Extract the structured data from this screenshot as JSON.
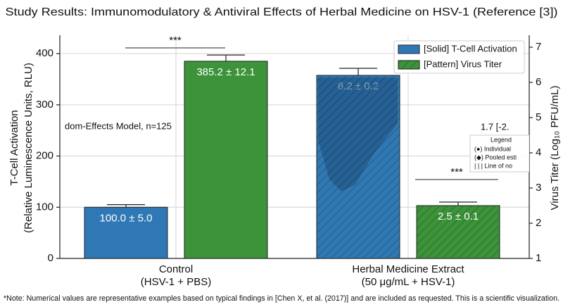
{
  "chart_data": {
    "type": "grouped-bar",
    "title": "Study Results: Immunomodulatory & Antiviral Effects of Herbal Medicine on HSV-1 (Reference [3])",
    "categories": [
      "Control",
      "Herbal Medicine Extract"
    ],
    "category_subtitles": [
      "(HSV-1 + PBS)",
      "(50 μg/mL + HSV-1)"
    ],
    "ylabel": [
      "T-Cell Activation",
      "(Relative Luminescence Units, RLU)"
    ],
    "y2label": "Virus Titer (Log₁₀ PFU/mL)",
    "ylim": [
      0,
      436
    ],
    "yticks": [
      0,
      100,
      200,
      300,
      400
    ],
    "y2lim": [
      1,
      7.34
    ],
    "y2ticks": [
      1,
      2,
      3,
      4,
      5,
      6,
      7
    ],
    "grid": true,
    "groups": [
      {
        "bars": [
          {
            "axis": "y",
            "value": 100,
            "error": 5,
            "value_label": "100.0 ± 5.0",
            "color": "#2f78b5",
            "hatch": false
          },
          {
            "axis": "y",
            "value": 385.2,
            "error": 12.1,
            "value_label": "385.2 ± 12.1",
            "color": "#3c9339",
            "hatch": false
          }
        ]
      },
      {
        "bars": [
          {
            "axis": "y2",
            "value": 6.2,
            "error": 0.2,
            "value_label": "6.2 ± 0.2",
            "color": "#2f78b5",
            "hatch": true
          },
          {
            "axis": "y2",
            "value": 2.5,
            "error": 0.1,
            "value_label": "2.5 ± 0.1",
            "color": "#3c9339",
            "hatch": true
          }
        ]
      }
    ],
    "legend": {
      "position": "upper right",
      "entries": [
        {
          "label": "[Solid] T-Cell Activation",
          "color": "#2f78b5",
          "hatch": false
        },
        {
          "label": "[Pattern] Virus Titer",
          "color": "#3c9339",
          "hatch": true
        }
      ]
    },
    "significance": [
      "***",
      "***"
    ],
    "annotations": [
      "dom-Effects Model, n=125",
      "1.7 [-2."
    ],
    "inset_legend": {
      "title": "Legend",
      "entries": [
        "(●) Individual",
        "(◆) Pooled esti",
        "| | | Line of no"
      ]
    },
    "note": "*Note: Numerical values are representative examples based on typical findings in [Chen X, et al. (2017)] and are included as requested. This is a scientific visualization."
  }
}
